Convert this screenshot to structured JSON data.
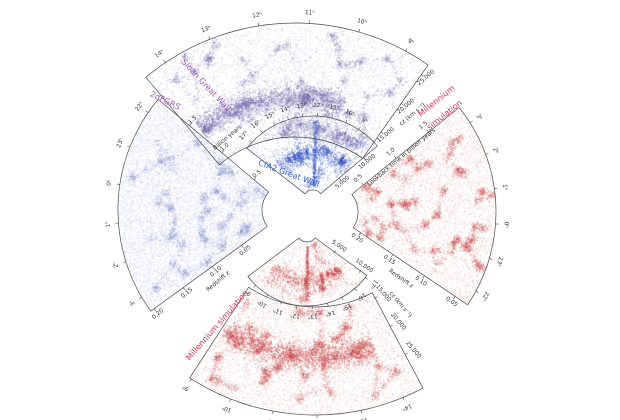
{
  "chart_data": {
    "type": "scatter",
    "background": "#ffffff",
    "line_color": "#4a4a4a",
    "tick_text_color": "#333333",
    "wedges": [
      {
        "id": "sdss",
        "label": "Sloan Great Wall",
        "label_color": "#9c5fb5",
        "dot_color": "#6c62a8",
        "hour_ticks": [
          "14ʰ",
          "13ʰ",
          "12ʰ",
          "11ʰ",
          "10ʰ",
          "9ʰ"
        ],
        "axes": [
          {
            "title": "cz (km s⁻¹)",
            "ticks": [
              "15,000",
              "20,000",
              "25,000"
            ]
          }
        ]
      },
      {
        "id": "cfa2",
        "label": "CfA2 Great Wall",
        "label_color": "#3a66cc",
        "dot_color": "#2e4cbe",
        "hour_ticks": [
          "17ʰ",
          "16ʰ",
          "15ʰ",
          "14ʰ",
          "13ʰ",
          "12ʰ",
          "11ʰ",
          "10ʰ",
          "9ʰ"
        ],
        "axes": [
          {
            "title": "",
            "ticks": [
              "5,000",
              "10,000"
            ]
          }
        ]
      },
      {
        "id": "twodf",
        "label": "2dFGRS",
        "label_color": "#9c5fb5",
        "dot_color": "#5868be",
        "hour_ticks": [
          "22ʰ",
          "23ʰ",
          "0ʰ",
          "1ʰ",
          "2ʰ",
          "3ʰ"
        ],
        "axes": [
          {
            "title": "Billion years",
            "ticks": [
              "0.5",
              "1.0",
              "1.5"
            ]
          },
          {
            "title": "Redshift z",
            "ticks": [
              "0.05",
              "0.10",
              "0.15",
              "0.20"
            ]
          }
        ]
      },
      {
        "id": "mright",
        "label": "Millennium simulation",
        "label_lines": [
          "Millennium",
          "simulation"
        ],
        "label_color": "#d93355",
        "dot_color": "#c44040",
        "hour_ticks": [
          "3ʰ",
          "2ʰ",
          "1ʰ",
          "0ʰ",
          "23ʰ",
          "22ʰ"
        ],
        "axes": [
          {
            "title": "Lookback time in billion years",
            "ticks": [
              "0.5",
              "1.0",
              "1.5"
            ]
          },
          {
            "title": "Redshift z",
            "ticks": [
              "0.20",
              "0.15",
              "0.10",
              "0.05"
            ]
          }
        ]
      },
      {
        "id": "mbsmall",
        "label": "",
        "label_color": "#d93355",
        "dot_color": "#c44040",
        "hour_ticks": [
          "9ʰ",
          "10ʰ",
          "11ʰ",
          "12ʰ",
          "13ʰ",
          "14ʰ",
          "15ʰ",
          "16ʰ",
          "17ʰ"
        ],
        "axes": [
          {
            "title": "",
            "ticks": [
              "5,000",
              "10,000"
            ]
          }
        ]
      },
      {
        "id": "mbig",
        "label": "Millennium simulation",
        "label_color": "#d93355",
        "dot_color": "#c44040",
        "hour_ticks": [
          "9ʰ",
          "10ʰ",
          "11ʰ",
          "12ʰ",
          "13ʰ",
          "14ʰ"
        ],
        "axes": [
          {
            "title": "cz (km s⁻¹)",
            "ticks": [
              "15,000",
              "20,000",
              "25,000"
            ]
          }
        ]
      }
    ]
  }
}
